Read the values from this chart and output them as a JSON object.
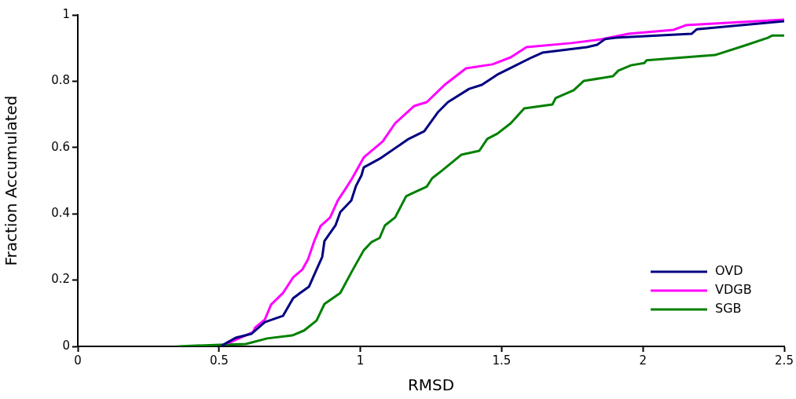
{
  "chart_data": {
    "type": "line",
    "xlabel": "RMSD",
    "ylabel": "Fraction Accumulated",
    "xlim": [
      0,
      2.5
    ],
    "ylim": [
      0,
      1
    ],
    "xticks": [
      0,
      0.5,
      1,
      1.5,
      2,
      2.5
    ],
    "yticks": [
      0,
      0.2,
      0.4,
      0.6,
      0.8,
      1
    ],
    "grid": false,
    "legend": "bottom right",
    "marker": "none",
    "line_style": "solid",
    "series": [
      {
        "name": "OVD",
        "color": "#000080",
        "x": [
          0.509,
          0.559,
          0.615,
          0.662,
          0.726,
          0.762,
          0.787,
          0.818,
          0.845,
          0.865,
          0.873,
          0.912,
          0.929,
          0.968,
          0.984,
          1.004,
          1.012,
          1.068,
          1.171,
          1.226,
          1.274,
          1.31,
          1.385,
          1.43,
          1.485,
          1.541,
          1.607,
          1.644,
          1.802,
          1.838,
          1.866,
          1.902,
          2.172,
          2.191,
          2.5
        ],
        "values": [
          0.002,
          0.026,
          0.038,
          0.073,
          0.092,
          0.145,
          0.161,
          0.18,
          0.232,
          0.27,
          0.318,
          0.365,
          0.405,
          0.44,
          0.483,
          0.516,
          0.54,
          0.566,
          0.626,
          0.649,
          0.706,
          0.737,
          0.777,
          0.789,
          0.82,
          0.844,
          0.872,
          0.886,
          0.903,
          0.91,
          0.927,
          0.931,
          0.943,
          0.957,
          0.981
        ]
      },
      {
        "name": "VDGB",
        "color": "#ff00ff",
        "x": [
          0.531,
          0.62,
          0.628,
          0.662,
          0.684,
          0.726,
          0.762,
          0.795,
          0.815,
          0.837,
          0.859,
          0.893,
          0.92,
          0.948,
          0.971,
          1.012,
          1.079,
          1.123,
          1.19,
          1.235,
          1.301,
          1.374,
          1.468,
          1.532,
          1.588,
          1.746,
          1.857,
          1.949,
          2.108,
          2.152,
          2.5
        ],
        "values": [
          0.009,
          0.043,
          0.057,
          0.081,
          0.126,
          0.161,
          0.208,
          0.232,
          0.263,
          0.318,
          0.363,
          0.389,
          0.44,
          0.476,
          0.507,
          0.57,
          0.618,
          0.673,
          0.725,
          0.737,
          0.791,
          0.839,
          0.851,
          0.872,
          0.903,
          0.915,
          0.927,
          0.943,
          0.955,
          0.969,
          0.986
        ]
      },
      {
        "name": "SGB",
        "color": "#008000",
        "x": [
          0.356,
          0.503,
          0.595,
          0.67,
          0.759,
          0.801,
          0.845,
          0.873,
          0.929,
          0.968,
          1.012,
          1.04,
          1.068,
          1.087,
          1.123,
          1.162,
          1.179,
          1.235,
          1.254,
          1.29,
          1.357,
          1.421,
          1.449,
          1.485,
          1.532,
          1.58,
          1.68,
          1.691,
          1.755,
          1.791,
          1.894,
          1.913,
          1.958,
          2.005,
          2.013,
          2.255,
          2.358,
          2.442,
          2.458,
          2.5
        ],
        "values": [
          0,
          0.005,
          0.007,
          0.024,
          0.033,
          0.048,
          0.078,
          0.128,
          0.161,
          0.223,
          0.29,
          0.315,
          0.327,
          0.365,
          0.389,
          0.453,
          0.46,
          0.482,
          0.507,
          0.531,
          0.578,
          0.59,
          0.626,
          0.642,
          0.673,
          0.718,
          0.73,
          0.749,
          0.773,
          0.801,
          0.815,
          0.832,
          0.848,
          0.855,
          0.863,
          0.879,
          0.907,
          0.931,
          0.938,
          0.938
        ]
      }
    ]
  }
}
